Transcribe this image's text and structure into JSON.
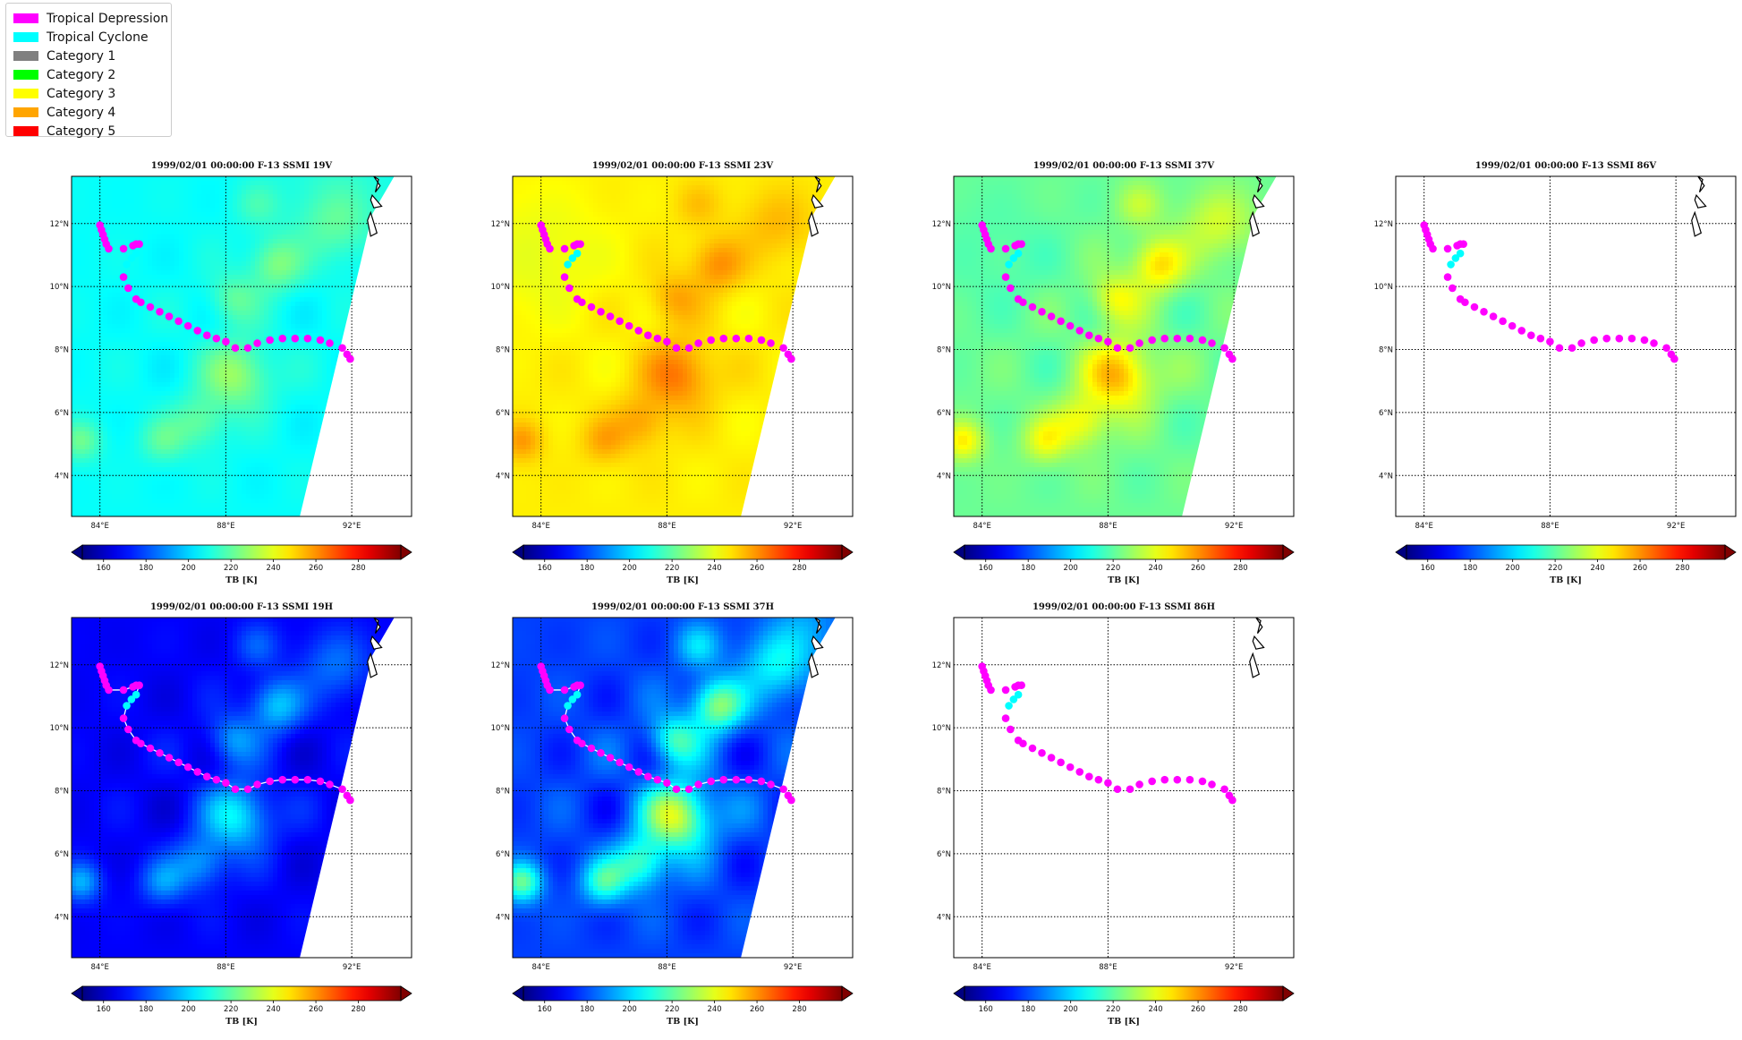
{
  "legend": {
    "items": [
      {
        "label": "Tropical Depression",
        "color": "#ff00ff"
      },
      {
        "label": "Tropical Cyclone",
        "color": "#00ffff"
      },
      {
        "label": "Category 1",
        "color": "#808080"
      },
      {
        "label": "Category 2",
        "color": "#00ff00"
      },
      {
        "label": "Category 3",
        "color": "#ffff00"
      },
      {
        "label": "Category 4",
        "color": "#ffa500"
      },
      {
        "label": "Category 5",
        "color": "#ff0000"
      }
    ]
  },
  "chart_data": {
    "type": "scatter",
    "map": {
      "lon_range": [
        83.1,
        93.9
      ],
      "lat_range": [
        2.7,
        13.5
      ],
      "lon_ticks": [
        84,
        88,
        92
      ],
      "lon_tick_labels": [
        "84°E",
        "88°E",
        "92°E"
      ],
      "lat_ticks": [
        4,
        6,
        8,
        10,
        12
      ],
      "lat_tick_labels": [
        "4°N",
        "6°N",
        "8°N",
        "10°N",
        "12°N"
      ],
      "grid": true,
      "grid_style": "dotted"
    },
    "colorbar": {
      "label": "TB [K]",
      "range": [
        150,
        300
      ],
      "ticks": [
        160,
        180,
        200,
        220,
        240,
        260,
        280
      ],
      "colormap": "jet",
      "extend": "both"
    },
    "track": [
      {
        "lon": 84.0,
        "lat": 11.95,
        "cat": 0
      },
      {
        "lon": 84.05,
        "lat": 11.8,
        "cat": 0
      },
      {
        "lon": 84.1,
        "lat": 11.65,
        "cat": 0
      },
      {
        "lon": 84.15,
        "lat": 11.5,
        "cat": 0
      },
      {
        "lon": 84.2,
        "lat": 11.35,
        "cat": 0
      },
      {
        "lon": 84.28,
        "lat": 11.2,
        "cat": 0
      },
      {
        "lon": 84.75,
        "lat": 11.2,
        "cat": 0
      },
      {
        "lon": 85.05,
        "lat": 11.3,
        "cat": 0
      },
      {
        "lon": 85.15,
        "lat": 11.35,
        "cat": 0
      },
      {
        "lon": 85.25,
        "lat": 11.35,
        "cat": 0
      },
      {
        "lon": 85.15,
        "lat": 11.05,
        "cat": 1
      },
      {
        "lon": 85.0,
        "lat": 10.9,
        "cat": 1
      },
      {
        "lon": 84.85,
        "lat": 10.7,
        "cat": 1
      },
      {
        "lon": 84.75,
        "lat": 10.3,
        "cat": 0
      },
      {
        "lon": 84.9,
        "lat": 9.95,
        "cat": 0
      },
      {
        "lon": 85.15,
        "lat": 9.6,
        "cat": 0
      },
      {
        "lon": 85.3,
        "lat": 9.5,
        "cat": 0
      },
      {
        "lon": 85.6,
        "lat": 9.35,
        "cat": 0
      },
      {
        "lon": 85.9,
        "lat": 9.2,
        "cat": 0
      },
      {
        "lon": 86.2,
        "lat": 9.05,
        "cat": 0
      },
      {
        "lon": 86.5,
        "lat": 8.9,
        "cat": 0
      },
      {
        "lon": 86.8,
        "lat": 8.75,
        "cat": 0
      },
      {
        "lon": 87.1,
        "lat": 8.6,
        "cat": 0
      },
      {
        "lon": 87.4,
        "lat": 8.45,
        "cat": 0
      },
      {
        "lon": 87.7,
        "lat": 8.35,
        "cat": 0
      },
      {
        "lon": 88.0,
        "lat": 8.25,
        "cat": 0
      },
      {
        "lon": 88.3,
        "lat": 8.05,
        "cat": 0
      },
      {
        "lon": 88.7,
        "lat": 8.05,
        "cat": 0
      },
      {
        "lon": 89.0,
        "lat": 8.2,
        "cat": 0
      },
      {
        "lon": 89.4,
        "lat": 8.3,
        "cat": 0
      },
      {
        "lon": 89.8,
        "lat": 8.35,
        "cat": 0
      },
      {
        "lon": 90.2,
        "lat": 8.35,
        "cat": 0
      },
      {
        "lon": 90.6,
        "lat": 8.35,
        "cat": 0
      },
      {
        "lon": 91.0,
        "lat": 8.3,
        "cat": 0
      },
      {
        "lon": 91.3,
        "lat": 8.2,
        "cat": 0
      },
      {
        "lon": 91.7,
        "lat": 8.05,
        "cat": 0
      },
      {
        "lon": 91.85,
        "lat": 7.85,
        "cat": 0
      },
      {
        "lon": 91.95,
        "lat": 7.7,
        "cat": 0
      }
    ],
    "panels": [
      {
        "title": "1999/02/01 00:00:00  F-13 SSMI 19V",
        "field": "v19",
        "swath": true,
        "track_line": false
      },
      {
        "title": "1999/02/01 00:00:00  F-13 SSMI 23V",
        "field": "v23",
        "swath": true,
        "track_line": false
      },
      {
        "title": "1999/02/01 00:00:00  F-13 SSMI 37V",
        "field": "v37",
        "swath": true,
        "track_line": false
      },
      {
        "title": "1999/02/01 00:00:00  F-13 SSMI 86V",
        "field": "none",
        "swath": false,
        "track_line": false
      },
      {
        "title": "1999/02/01 00:00:00  F-13 SSMI 19H",
        "field": "h19",
        "swath": true,
        "track_line": true
      },
      {
        "title": "1999/02/01 00:00:00  F-13 SSMI 37H",
        "field": "h37",
        "swath": true,
        "track_line": true
      },
      {
        "title": "1999/02/01 00:00:00  F-13 SSMI 86H",
        "field": "none",
        "swath": false,
        "track_line": false
      }
    ]
  }
}
